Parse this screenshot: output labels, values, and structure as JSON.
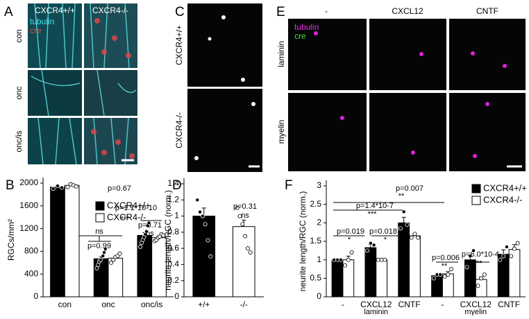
{
  "panels": [
    {
      "letter": "A",
      "columns": [
        "CXCR4+/+",
        "CXCR4-/-"
      ],
      "rows": [
        "con",
        "onc",
        "onc/is"
      ],
      "stains": [
        "tubulin",
        "cre"
      ]
    },
    {
      "letter": "C",
      "rows": [
        "CXCR4+/+",
        "CXCR4-/-"
      ]
    },
    {
      "letter": "E",
      "columns": [
        "-",
        "CXCL12",
        "CNTF"
      ],
      "rows": [
        "laminin",
        "myelin"
      ],
      "stains": [
        "tubulin",
        "cre"
      ]
    }
  ],
  "chart_data": [
    {
      "type": "bar",
      "letter": "B",
      "ylabel": "RGCs/mm²",
      "categories": [
        "con",
        "onc",
        "onc/is"
      ],
      "series": [
        {
          "name": "CXCR4+/+",
          "color": "#000000",
          "values": [
            1930,
            670,
            1080
          ],
          "errors": [
            30,
            40,
            50
          ],
          "points": [
            [
              1900,
              1950,
              1920
            ],
            [
              500,
              560,
              620,
              650,
              700,
              720,
              780,
              840
            ],
            [
              880,
              950,
              1000,
              1050,
              1100,
              1150,
              1250,
              1300
            ]
          ]
        },
        {
          "name": "CXCR4-/-",
          "color": "#ffffff",
          "values": [
            1960,
            680,
            1040
          ],
          "errors": [
            20,
            30,
            30
          ],
          "points": [
            [
              1930,
              1980,
              1960,
              1940
            ],
            [
              600,
              650,
              700,
              720,
              760
            ],
            [
              980,
              1000,
              1040,
              1060,
              1100,
              1080
            ]
          ]
        }
      ],
      "ylim": [
        0,
        2000
      ],
      "yticks": [
        0,
        400,
        800,
        1200,
        1600,
        2000
      ],
      "annotations": [
        "p=0.67",
        "p=0.99",
        "ns",
        "p=1.1*10-10",
        "***",
        "p=0.71",
        "ns"
      ]
    },
    {
      "type": "bar",
      "letter": "D",
      "ylabel": "neurite length/RGC (norm.)",
      "categories": [
        "+/+",
        "-/-"
      ],
      "series": [
        {
          "color": "#000000",
          "values": [
            1.0,
            null
          ],
          "errors": [
            0.1,
            null
          ],
          "points": [
            [
              1.2,
              1.05,
              1.0,
              0.9,
              0.7,
              0.5
            ],
            []
          ]
        },
        {
          "color": "#ffffff",
          "values": [
            null,
            0.87
          ],
          "errors": [
            null,
            0.08
          ],
          "points": [
            [],
            [
              1.1,
              1.0,
              0.9,
              0.75,
              0.6,
              0.55
            ]
          ]
        }
      ],
      "ylim": [
        0,
        1.4
      ],
      "yticks": [
        0,
        0.2,
        0.4,
        0.6,
        0.8,
        1,
        1.2,
        1.4
      ],
      "annotations": [
        "p=0.31",
        "ns"
      ]
    },
    {
      "type": "bar",
      "letter": "F",
      "ylabel": "neurite length/RGC (norm.)",
      "categories": [
        "-",
        "CXCL12",
        "CNTF",
        "-",
        "CXCL12",
        "CNTF"
      ],
      "groups": [
        "laminin",
        "myelin"
      ],
      "series": [
        {
          "name": "CXCR4+/+",
          "color": "#000000",
          "values": [
            1.0,
            1.33,
            2.0,
            0.57,
            1.0,
            1.15
          ],
          "errors": [
            0.02,
            0.08,
            0.15,
            0.04,
            0.12,
            0.12
          ],
          "points": [
            [
              1.0,
              1.0,
              1.0
            ],
            [
              1.25,
              1.45,
              1.4
            ],
            [
              1.85,
              2.3,
              1.95
            ],
            [
              0.5,
              0.6,
              0.6
            ],
            [
              0.8,
              1.1,
              1.25
            ],
            [
              1.0,
              1.1,
              1.35
            ]
          ]
        },
        {
          "name": "CXCR4-/-",
          "color": "#ffffff",
          "values": [
            1.0,
            1.0,
            1.65,
            0.62,
            0.47,
            1.28
          ],
          "errors": [
            0.1,
            0.01,
            0.06,
            0.06,
            0.07,
            0.13
          ],
          "points": [
            [
              0.85,
              1.0,
              1.2
            ],
            [
              1.0,
              1.0,
              1.0
            ],
            [
              1.6,
              1.7,
              1.6
            ],
            [
              0.55,
              0.6,
              0.75
            ],
            [
              0.3,
              0.5,
              0.6
            ],
            [
              1.1,
              1.3,
              1.45
            ]
          ]
        }
      ],
      "ylim": [
        0,
        3
      ],
      "yticks": [
        0,
        0.5,
        1,
        1.5,
        2,
        2.5,
        3
      ],
      "annotations": [
        "p=0.007",
        "**",
        "p=1.4*10-7",
        "***",
        "p=0.019",
        "*",
        "p=0.018",
        "*",
        "p=0.006",
        "**",
        "p=6.0*10-4",
        "***"
      ]
    }
  ]
}
